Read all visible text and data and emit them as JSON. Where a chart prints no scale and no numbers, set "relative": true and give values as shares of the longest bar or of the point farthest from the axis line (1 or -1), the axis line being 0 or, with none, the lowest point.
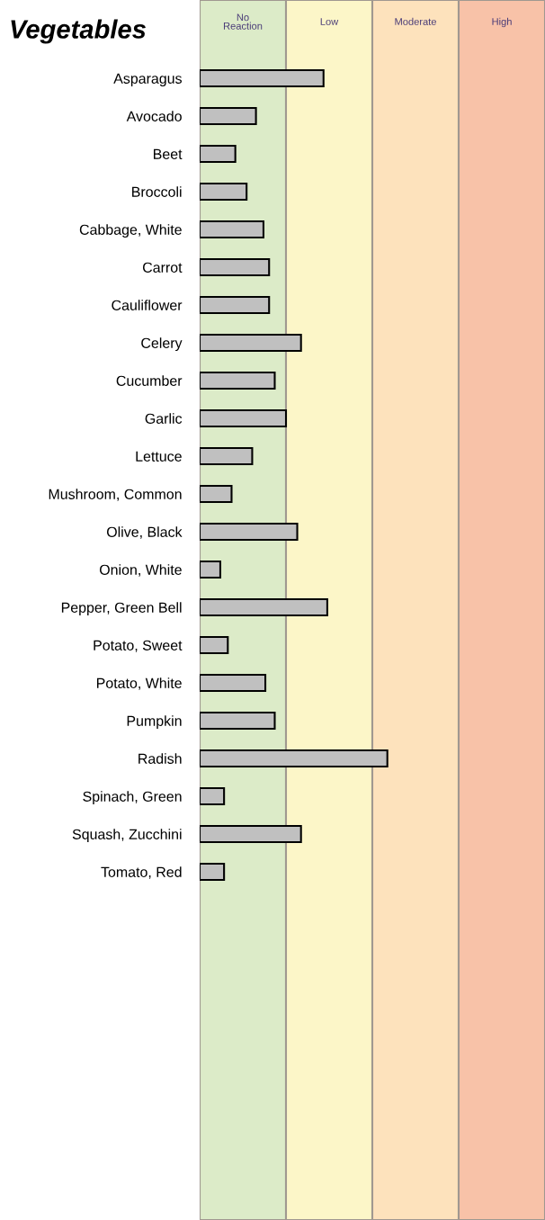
{
  "chart_data": {
    "type": "bar",
    "orientation": "horizontal",
    "relative": true,
    "title": "Vegetables",
    "categories": [
      "Asparagus",
      "Avocado",
      "Beet",
      "Broccoli",
      "Cabbage, White",
      "Carrot",
      "Cauliflower",
      "Celery",
      "Cucumber",
      "Garlic",
      "Lettuce",
      "Mushroom, Common",
      "Olive, Black",
      "Onion, White",
      "Pepper, Green Bell",
      "Potato, Sweet",
      "Potato, White",
      "Pumpkin",
      "Radish",
      "Spinach, Green",
      "Squash, Zucchini",
      "Tomato, Red"
    ],
    "values": [
      0.66,
      0.3,
      0.19,
      0.25,
      0.34,
      0.37,
      0.37,
      0.54,
      0.4,
      0.46,
      0.28,
      0.17,
      0.52,
      0.11,
      0.68,
      0.15,
      0.35,
      0.4,
      1,
      0.13,
      0.54,
      0.13
    ],
    "color": "#c0c0c0",
    "bands": [
      {
        "axis": "x",
        "from": 0,
        "to": 0.46,
        "label": "No\nReaction",
        "color": "#dcebc8"
      },
      {
        "axis": "x",
        "from": 0.46,
        "to": 0.92,
        "label": "Low",
        "color": "#fcf6c8"
      },
      {
        "axis": "x",
        "from": 0.92,
        "to": 1.38,
        "label": "Moderate",
        "color": "#fde2bc"
      },
      {
        "axis": "x",
        "from": 1.38,
        "to": 1.84,
        "label": "High",
        "color": "#f8c2a8"
      }
    ],
    "grid": false,
    "legend": false
  }
}
